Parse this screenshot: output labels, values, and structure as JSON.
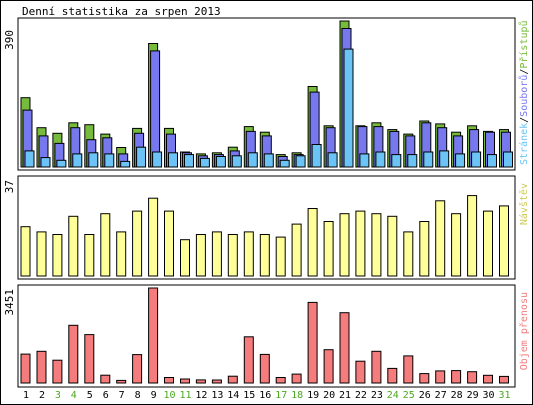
{
  "title": "Denní statistika za srpen 2013",
  "colors": {
    "background": "#ffffff",
    "border": "#000000",
    "hits_bar": "#77bb3c",
    "files_bar": "#7777ee",
    "pages_bar": "#6cc4f6",
    "visits_bar": "#ffff99",
    "kbytes_bar": "#f47c7c",
    "weekday_label": "#000000",
    "weekend_label": "#4aa820",
    "legend_hits": "#77bb3c",
    "legend_files": "#7777ee",
    "legend_pages": "#6cc4f6",
    "legend_visits": "#cccc55",
    "legend_kbytes": "#f47c7c"
  },
  "chart_data": [
    {
      "type": "bar",
      "panel": "hits-files-pages",
      "ymax_label": "390",
      "ylim": [
        0,
        390
      ],
      "legend": [
        "Stránek",
        "/",
        "Souborů",
        "/",
        "Přístupů"
      ],
      "categories": [
        "1",
        "2",
        "3",
        "4",
        "5",
        "6",
        "7",
        "8",
        "9",
        "10",
        "11",
        "12",
        "13",
        "14",
        "15",
        "16",
        "17",
        "18",
        "19",
        "20",
        "21",
        "22",
        "23",
        "24",
        "25",
        "26",
        "27",
        "28",
        "29",
        "30",
        "31"
      ],
      "series": [
        {
          "name": "Přístupů",
          "values": [
            185,
            105,
            90,
            118,
            113,
            88,
            52,
            103,
            330,
            103,
            40,
            35,
            38,
            53,
            108,
            93,
            33,
            38,
            215,
            110,
            390,
            110,
            118,
            100,
            88,
            123,
            115,
            93,
            110,
            95,
            100
          ]
        },
        {
          "name": "Souborů",
          "values": [
            152,
            83,
            63,
            105,
            73,
            78,
            35,
            90,
            310,
            88,
            38,
            30,
            33,
            43,
            95,
            83,
            28,
            33,
            200,
            105,
            370,
            108,
            108,
            95,
            83,
            118,
            105,
            83,
            100,
            93,
            93
          ]
        },
        {
          "name": "Stránek",
          "values": [
            43,
            25,
            18,
            35,
            38,
            35,
            15,
            53,
            40,
            38,
            33,
            23,
            28,
            30,
            38,
            35,
            18,
            30,
            60,
            38,
            315,
            35,
            40,
            33,
            33,
            40,
            43,
            35,
            40,
            33,
            40
          ]
        }
      ]
    },
    {
      "type": "bar",
      "panel": "visits",
      "ymax_label": "37",
      "ylim": [
        0,
        37
      ],
      "legend": [
        "Návštěv"
      ],
      "categories": [
        "1",
        "2",
        "3",
        "4",
        "5",
        "6",
        "7",
        "8",
        "9",
        "10",
        "11",
        "12",
        "13",
        "14",
        "15",
        "16",
        "17",
        "18",
        "19",
        "20",
        "21",
        "22",
        "23",
        "24",
        "25",
        "26",
        "27",
        "28",
        "29",
        "30",
        "31"
      ],
      "series": [
        {
          "name": "Návštěv",
          "values": [
            19,
            17,
            16,
            23,
            16,
            24,
            17,
            25,
            30,
            25,
            14,
            16,
            17,
            16,
            17,
            16,
            15,
            20,
            26,
            21,
            24,
            25,
            24,
            23,
            17,
            21,
            29,
            24,
            31,
            25,
            27
          ]
        }
      ]
    },
    {
      "type": "bar",
      "panel": "kbytes",
      "ymax_label": "3451",
      "ylim": [
        0,
        3451
      ],
      "legend": [
        "Objem přenosu"
      ],
      "categories": [
        "1",
        "2",
        "3",
        "4",
        "5",
        "6",
        "7",
        "8",
        "9",
        "10",
        "11",
        "12",
        "13",
        "14",
        "15",
        "16",
        "17",
        "18",
        "19",
        "20",
        "21",
        "22",
        "23",
        "24",
        "25",
        "26",
        "27",
        "28",
        "29",
        "30",
        "31"
      ],
      "series": [
        {
          "name": "Objem přenosu",
          "values": [
            1050,
            1150,
            828,
            2095,
            1760,
            282,
            96,
            1030,
            3451,
            200,
            144,
            112,
            110,
            248,
            1680,
            1040,
            200,
            325,
            2928,
            1210,
            2555,
            791,
            1150,
            530,
            983,
            340,
            440,
            450,
            410,
            280,
            240
          ]
        }
      ]
    }
  ],
  "x_labels": [
    "1",
    "2",
    "3",
    "4",
    "5",
    "6",
    "7",
    "8",
    "9",
    "10",
    "11",
    "12",
    "13",
    "14",
    "15",
    "16",
    "17",
    "18",
    "19",
    "20",
    "21",
    "22",
    "23",
    "24",
    "25",
    "26",
    "27",
    "28",
    "29",
    "30",
    "31"
  ],
  "weekend_days": [
    "3",
    "4",
    "10",
    "11",
    "17",
    "18",
    "24",
    "25",
    "31"
  ]
}
